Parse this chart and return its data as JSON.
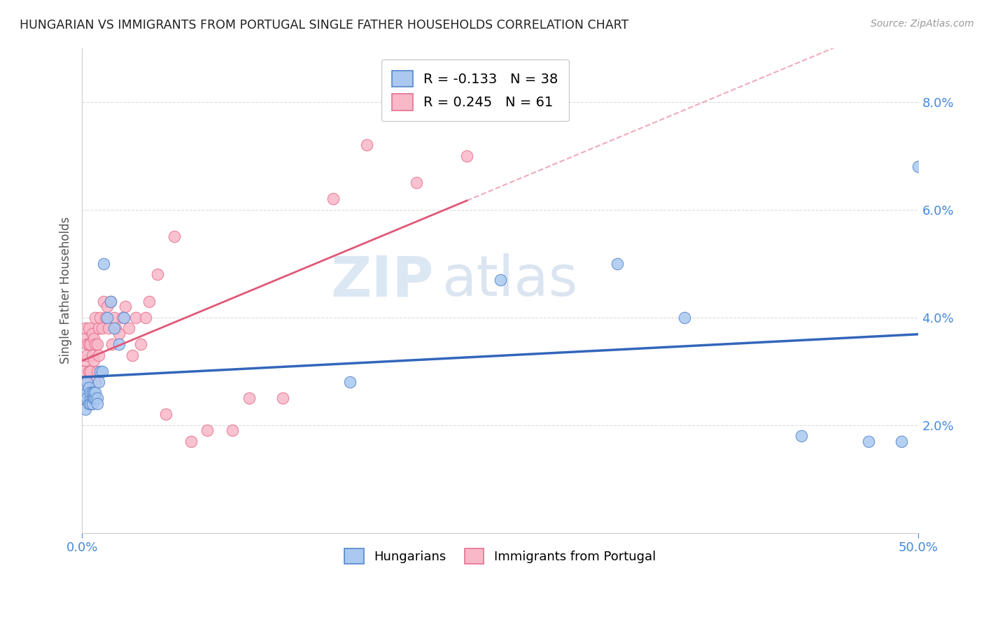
{
  "title": "HUNGARIAN VS IMMIGRANTS FROM PORTUGAL SINGLE FATHER HOUSEHOLDS CORRELATION CHART",
  "source": "Source: ZipAtlas.com",
  "ylabel": "Single Father Households",
  "xlim": [
    0.0,
    0.5
  ],
  "ylim": [
    0.0,
    0.09
  ],
  "xtick_positions": [
    0.0,
    0.5
  ],
  "xtick_labels": [
    "0.0%",
    "50.0%"
  ],
  "ytick_positions": [
    0.02,
    0.04,
    0.06,
    0.08
  ],
  "ytick_labels": [
    "2.0%",
    "4.0%",
    "6.0%",
    "8.0%"
  ],
  "series1_label": "Hungarians",
  "series1_color": "#aac8f0",
  "series1_edge_color": "#5588cc",
  "series1_line_color": "#3366bb",
  "series1_R": -0.133,
  "series1_N": 38,
  "series2_label": "Immigrants from Portugal",
  "series2_color": "#f8b8c8",
  "series2_edge_color": "#e87090",
  "series2_line_color": "#e05878",
  "series2_R": 0.245,
  "series2_N": 61,
  "watermark_zip": "ZIP",
  "watermark_atlas": "atlas",
  "background_color": "#ffffff",
  "grid_color": "#dddddd",
  "hungarian_x": [
    0.001,
    0.002,
    0.002,
    0.003,
    0.003,
    0.003,
    0.004,
    0.004,
    0.005,
    0.005,
    0.005,
    0.006,
    0.006,
    0.006,
    0.007,
    0.007,
    0.007,
    0.008,
    0.008,
    0.009,
    0.009,
    0.01,
    0.011,
    0.012,
    0.013,
    0.015,
    0.017,
    0.019,
    0.022,
    0.025,
    0.16,
    0.25,
    0.32,
    0.36,
    0.43,
    0.47,
    0.49,
    0.5
  ],
  "hungarian_y": [
    0.025,
    0.027,
    0.023,
    0.026,
    0.025,
    0.028,
    0.024,
    0.027,
    0.025,
    0.026,
    0.024,
    0.025,
    0.026,
    0.024,
    0.025,
    0.026,
    0.025,
    0.025,
    0.026,
    0.025,
    0.024,
    0.028,
    0.03,
    0.03,
    0.05,
    0.04,
    0.043,
    0.038,
    0.035,
    0.04,
    0.028,
    0.047,
    0.05,
    0.04,
    0.018,
    0.017,
    0.017,
    0.068
  ],
  "portugal_x": [
    0.001,
    0.001,
    0.001,
    0.002,
    0.002,
    0.002,
    0.003,
    0.003,
    0.003,
    0.003,
    0.004,
    0.004,
    0.004,
    0.004,
    0.005,
    0.005,
    0.005,
    0.006,
    0.006,
    0.006,
    0.007,
    0.007,
    0.007,
    0.008,
    0.008,
    0.008,
    0.009,
    0.009,
    0.01,
    0.01,
    0.011,
    0.012,
    0.013,
    0.014,
    0.015,
    0.016,
    0.017,
    0.018,
    0.019,
    0.02,
    0.022,
    0.024,
    0.026,
    0.028,
    0.03,
    0.032,
    0.035,
    0.038,
    0.04,
    0.045,
    0.05,
    0.055,
    0.065,
    0.075,
    0.09,
    0.1,
    0.12,
    0.15,
    0.17,
    0.2,
    0.23
  ],
  "portugal_y": [
    0.03,
    0.025,
    0.036,
    0.028,
    0.032,
    0.038,
    0.025,
    0.033,
    0.035,
    0.026,
    0.027,
    0.03,
    0.035,
    0.038,
    0.025,
    0.03,
    0.035,
    0.024,
    0.033,
    0.037,
    0.025,
    0.032,
    0.036,
    0.028,
    0.035,
    0.04,
    0.03,
    0.035,
    0.033,
    0.038,
    0.04,
    0.038,
    0.043,
    0.04,
    0.042,
    0.038,
    0.043,
    0.035,
    0.04,
    0.038,
    0.037,
    0.04,
    0.042,
    0.038,
    0.033,
    0.04,
    0.035,
    0.04,
    0.043,
    0.048,
    0.022,
    0.055,
    0.017,
    0.019,
    0.019,
    0.025,
    0.025,
    0.062,
    0.072,
    0.065,
    0.07
  ]
}
